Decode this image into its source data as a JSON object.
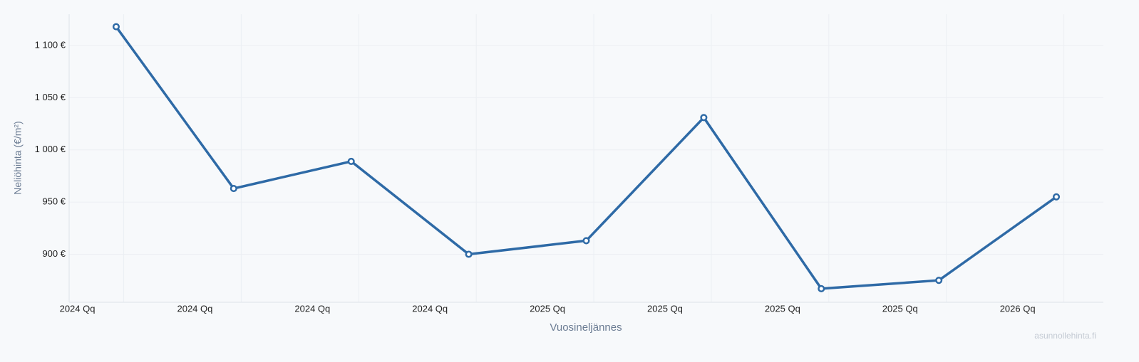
{
  "chart_data": {
    "type": "line",
    "x_label": "Vuosineljännes",
    "y_label": "Neliöhinta (€/m²)",
    "watermark": "asunnollehinta.fi",
    "x": [
      0.33,
      1.33,
      2.33,
      3.33,
      4.33,
      5.33,
      6.33,
      7.33,
      8.33
    ],
    "series": [
      {
        "color": "#2e6aa6",
        "values": [
          1118,
          963,
          989,
          900,
          913,
          1031,
          867,
          875,
          955
        ]
      }
    ],
    "xlim": [
      -0.07,
      8.73
    ],
    "xticks": [
      {
        "value": 0,
        "label": "2024 Qq"
      },
      {
        "value": 1,
        "label": "2024 Qq"
      },
      {
        "value": 2,
        "label": "2024 Qq"
      },
      {
        "value": 3,
        "label": "2024 Qq"
      },
      {
        "value": 4,
        "label": "2025 Qq"
      },
      {
        "value": 5,
        "label": "2025 Qq"
      },
      {
        "value": 6,
        "label": "2025 Qq"
      },
      {
        "value": 7,
        "label": "2025 Qq"
      },
      {
        "value": 8,
        "label": "2026 Qq"
      }
    ],
    "ylim": [
      854,
      1130
    ],
    "yticks": [
      {
        "value": 900,
        "label": "900 €"
      },
      {
        "value": 950,
        "label": "950 €"
      },
      {
        "value": 1000,
        "label": "1 000 €"
      },
      {
        "value": 1050,
        "label": "1 050 €"
      },
      {
        "value": 1100,
        "label": "1 100 €"
      }
    ],
    "grid": true
  }
}
